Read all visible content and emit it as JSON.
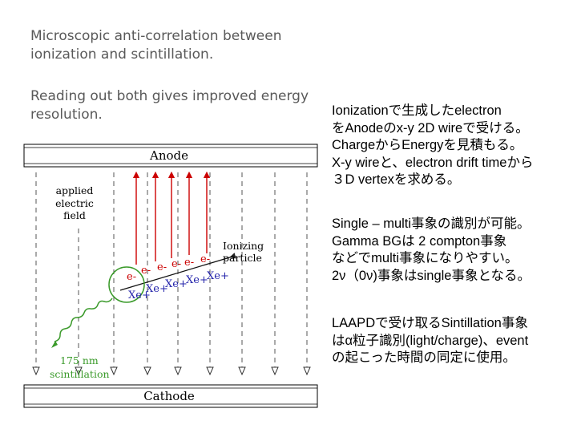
{
  "intro": {
    "line1": "Microscopic anti-correlation between ionization and scintillation.",
    "line2": "Reading out both gives improved energy resolution."
  },
  "diagram": {
    "anode_label": "Anode",
    "cathode_label": "Cathode",
    "field_label": [
      "applied",
      "electric",
      "field"
    ],
    "particle_label": [
      "Ionizing",
      "particle"
    ],
    "photon_label": [
      "175 nm",
      "scintillation"
    ],
    "electron_label": "e-",
    "ion_label": "Xe+",
    "colors": {
      "electron": "#cc0000",
      "ion": "#2222aa",
      "photon": "#3a9a2a",
      "circle": "#3a9a2a",
      "field": "#555555"
    }
  },
  "notes": {
    "p1": [
      "Ionizationで生成したelectron",
      "をAnodeのx-y 2D wireで受ける。",
      "ChargeからEnergyを見積もる。",
      "X-y wireと、electron drift timeから",
      "３D vertexを求める。"
    ],
    "p2": [
      "Single – multi事象の識別が可能。",
      "Gamma BGは 2 compton事象",
      "などでmulti事象になりやすい。",
      "2ν（0ν)事象はsingle事象となる。"
    ],
    "p3": [
      "LAAPDで受け取るSintillation事象",
      "はα粒子識別(light/charge)、event",
      "の起こった時間の同定に使用。"
    ]
  }
}
